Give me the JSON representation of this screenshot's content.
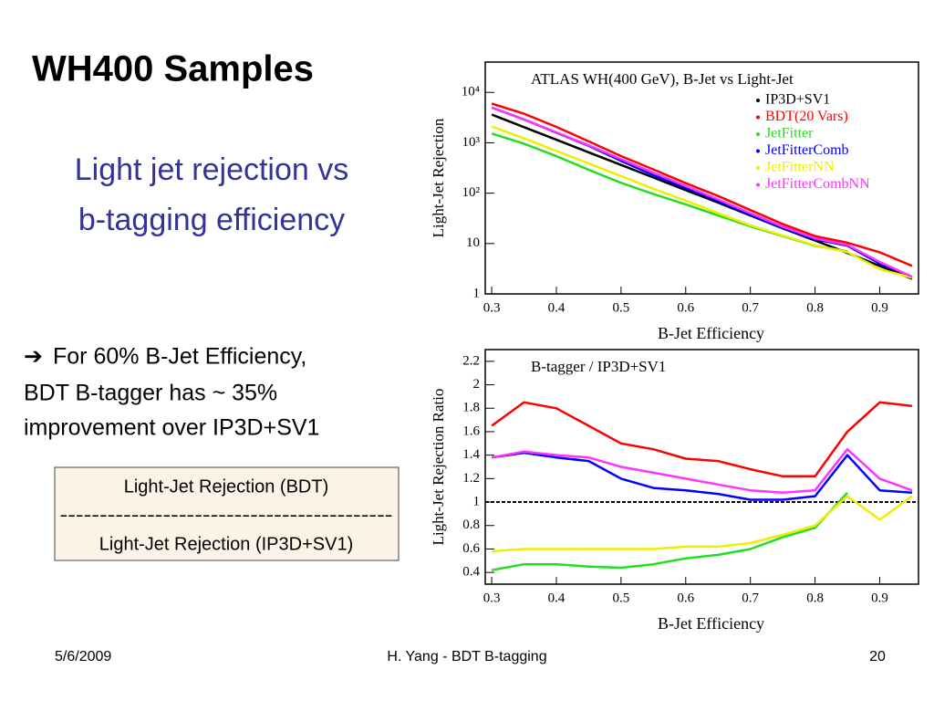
{
  "title": "WH400 Samples",
  "subtitle": [
    "Light jet rejection vs",
    "b-tagging efficiency"
  ],
  "note": [
    "For 60% B-Jet Efficiency,",
    "BDT B-tagger has ~ 35%",
    "improvement over IP3D+SV1"
  ],
  "formula": [
    "Light-Jet Rejection (BDT)",
    "------------------------------------------",
    "Light-Jet Rejection (IP3D+SV1)"
  ],
  "footer": {
    "date": "5/6/2009",
    "center": "H. Yang - BDT B-tagging",
    "page": "20"
  },
  "chart_data": [
    {
      "type": "line",
      "title": "ATLAS WH(400 GeV), B-Jet vs Light-Jet",
      "xlabel": "B-Jet Efficiency",
      "ylabel": "Light-Jet Rejection",
      "x": [
        0.3,
        0.35,
        0.4,
        0.45,
        0.5,
        0.55,
        0.6,
        0.65,
        0.7,
        0.75,
        0.8,
        0.85,
        0.9,
        0.95
      ],
      "xlim": [
        0.29,
        0.96
      ],
      "xticks": [
        0.3,
        0.4,
        0.5,
        0.6,
        0.7,
        0.8,
        0.9
      ],
      "ylim": [
        1,
        40000
      ],
      "log_y": true,
      "yticks": [
        1,
        10,
        {
          "value": 100,
          "label": "10²"
        },
        {
          "value": 1000,
          "label": "10³"
        },
        {
          "value": 10000,
          "label": "10⁴"
        }
      ],
      "legend": "upper right",
      "series": [
        {
          "name": "IP3D+SV1",
          "color": "#000000",
          "values": [
            3630,
            2040,
            1150,
            646,
            363,
            204,
            115,
            65,
            36,
            20,
            11.5,
            6.5,
            3.6,
            2.0
          ]
        },
        {
          "name": "BDT(20 Vars)",
          "color": "#ff0000",
          "values": [
            5990,
            3774,
            2070,
            1066,
            545,
            296,
            158,
            88,
            46,
            24.4,
            14,
            10.4,
            6.7,
            3.6
          ]
        },
        {
          "name": "JetFitter",
          "color": "#22dd22",
          "values": [
            1525,
            959,
            541,
            291,
            160,
            96,
            60,
            36,
            22,
            14,
            9.0,
            7.0,
            null,
            null
          ]
        },
        {
          "name": "JetFitterComb",
          "color": "#0000ff",
          "values": [
            5009,
            2897,
            1587,
            872,
            436,
            228,
            127,
            70,
            37,
            20.4,
            12.1,
            9.1,
            4.0,
            2.2
          ]
        },
        {
          "name": "JetFitterNN",
          "color": "#eeee00",
          "values": [
            2105,
            1224,
            690,
            388,
            218,
            122,
            71,
            40,
            23,
            14.4,
            9.2,
            6.8,
            3.1,
            2.1
          ]
        },
        {
          "name": "JetFitterCombNN",
          "color": "#ff33ff",
          "values": [
            5009,
            2917,
            1610,
            891,
            472,
            255,
            138,
            75,
            40,
            21.6,
            12.7,
            9.4,
            4.3,
            2.2
          ]
        }
      ]
    },
    {
      "type": "line",
      "title": "B-tagger / IP3D+SV1",
      "xlabel": "B-Jet Efficiency",
      "ylabel": "Light-Jet Rejection Ratio",
      "x": [
        0.3,
        0.35,
        0.4,
        0.45,
        0.5,
        0.55,
        0.6,
        0.65,
        0.7,
        0.75,
        0.8,
        0.85,
        0.9,
        0.95
      ],
      "xlim": [
        0.29,
        0.96
      ],
      "xticks": [
        0.3,
        0.4,
        0.5,
        0.6,
        0.7,
        0.8,
        0.9
      ],
      "ylim": [
        0.3,
        2.3
      ],
      "yticks": [
        0.4,
        0.6,
        0.8,
        1,
        1.2,
        1.4,
        1.6,
        1.8,
        2,
        2.2
      ],
      "reference_line": 1,
      "series": [
        {
          "color": "#ff0000",
          "values": [
            1.65,
            1.85,
            1.8,
            1.65,
            1.5,
            1.45,
            1.37,
            1.35,
            1.28,
            1.22,
            1.22,
            1.6,
            1.85,
            1.82
          ]
        },
        {
          "color": "#22dd22",
          "values": [
            0.42,
            0.47,
            0.47,
            0.45,
            0.44,
            0.47,
            0.52,
            0.55,
            0.6,
            0.7,
            0.78,
            1.08,
            null,
            null
          ]
        },
        {
          "color": "#0000ff",
          "values": [
            1.38,
            1.42,
            1.38,
            1.35,
            1.2,
            1.12,
            1.1,
            1.07,
            1.02,
            1.02,
            1.05,
            1.4,
            1.1,
            1.08
          ]
        },
        {
          "color": "#eeee00",
          "values": [
            0.58,
            0.6,
            0.6,
            0.6,
            0.6,
            0.6,
            0.62,
            0.62,
            0.65,
            0.72,
            0.8,
            1.05,
            0.85,
            1.05
          ]
        },
        {
          "color": "#ff33ff",
          "values": [
            1.38,
            1.43,
            1.4,
            1.38,
            1.3,
            1.25,
            1.2,
            1.15,
            1.1,
            1.08,
            1.1,
            1.45,
            1.2,
            1.1
          ]
        }
      ]
    }
  ]
}
